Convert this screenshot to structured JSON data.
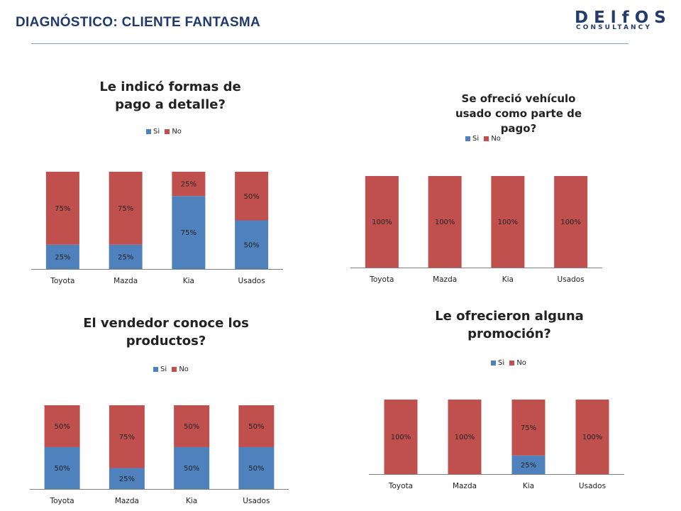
{
  "header": {
    "title": "DIAGNÓSTICO: CLIENTE FANTASMA",
    "logo_main": "DElfOS",
    "logo_sub": "CONSULTANCY"
  },
  "colors": {
    "si": "#4f81bd",
    "no": "#c0504d",
    "title": "#1f3a6e"
  },
  "chart_data": [
    {
      "type": "bar",
      "stacked": true,
      "title": "Le indicó formas de pago a detalle?",
      "legend": [
        "Si",
        "No"
      ],
      "legend_position": "top",
      "categories": [
        "Toyota",
        "Mazda",
        "Kia",
        "Usados"
      ],
      "series": [
        {
          "name": "Si",
          "values": [
            25,
            25,
            75,
            50
          ],
          "labels": [
            "25%",
            "25%",
            "75%",
            "50%"
          ]
        },
        {
          "name": "No",
          "values": [
            75,
            75,
            25,
            50
          ],
          "labels": [
            "75%",
            "75%",
            "25%",
            "50%"
          ]
        }
      ],
      "ylim": [
        0,
        100
      ]
    },
    {
      "type": "bar",
      "stacked": true,
      "title": "Se ofreció vehículo usado como parte de pago?",
      "legend": [
        "Si",
        "No"
      ],
      "legend_position": "top",
      "categories": [
        "Toyota",
        "Mazda",
        "Kia",
        "Usados"
      ],
      "series": [
        {
          "name": "Si",
          "values": [
            0,
            0,
            0,
            0
          ],
          "labels": [
            "0%",
            "0%",
            "0%",
            "0%"
          ]
        },
        {
          "name": "No",
          "values": [
            100,
            100,
            100,
            100
          ],
          "labels": [
            "100%",
            "100%",
            "100%",
            "100%"
          ]
        }
      ],
      "ylim": [
        0,
        100
      ]
    },
    {
      "type": "bar",
      "stacked": true,
      "title": "El vendedor conoce los productos?",
      "legend": [
        "Si",
        "No"
      ],
      "legend_position": "top",
      "categories": [
        "Toyota",
        "Mazda",
        "Kia",
        "Usados"
      ],
      "series": [
        {
          "name": "Si",
          "values": [
            50,
            25,
            50,
            50
          ],
          "labels": [
            "50%",
            "25%",
            "50%",
            "50%"
          ]
        },
        {
          "name": "No",
          "values": [
            50,
            75,
            50,
            50
          ],
          "labels": [
            "50%",
            "75%",
            "50%",
            "50%"
          ]
        }
      ],
      "ylim": [
        0,
        100
      ]
    },
    {
      "type": "bar",
      "stacked": true,
      "title": "Le ofrecieron alguna promoción?",
      "legend": [
        "Si",
        "No"
      ],
      "legend_position": "top",
      "categories": [
        "Toyota",
        "Mazda",
        "Kia",
        "Usados"
      ],
      "series": [
        {
          "name": "Si",
          "values": [
            0,
            0,
            25,
            0
          ],
          "labels": [
            "0%",
            "0%",
            "25%",
            "0%"
          ]
        },
        {
          "name": "No",
          "values": [
            100,
            100,
            75,
            100
          ],
          "labels": [
            "100%",
            "100%",
            "75%",
            "100%"
          ]
        }
      ],
      "ylim": [
        0,
        100
      ]
    }
  ]
}
